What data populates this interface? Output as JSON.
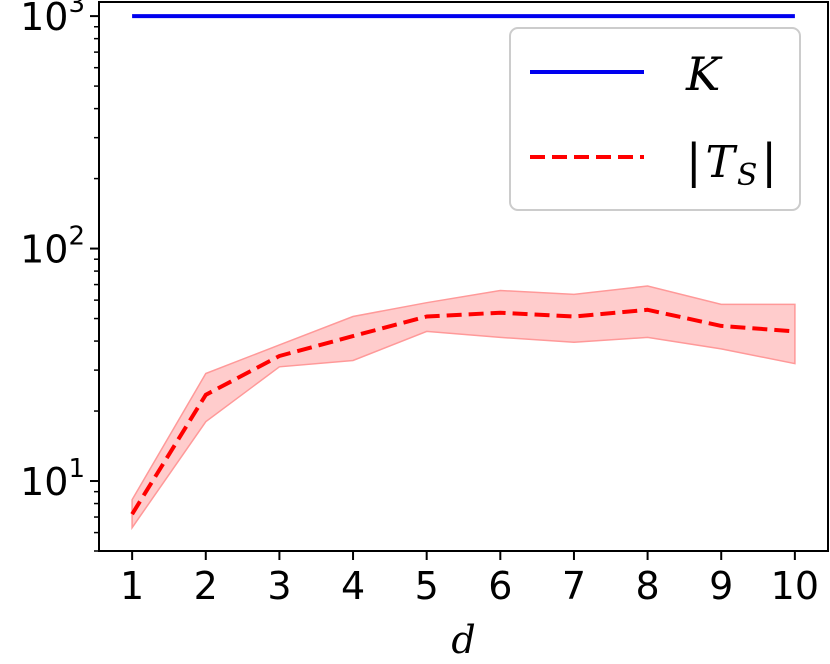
{
  "chart_data": {
    "type": "line",
    "title": "",
    "xlabel": "d",
    "ylabel": "",
    "yscale": "log",
    "xlim": [
      0.55,
      10.45
    ],
    "ylim": [
      5.0,
      1150
    ],
    "x": [
      1,
      2,
      3,
      4,
      5,
      6,
      7,
      8,
      9,
      10
    ],
    "x_ticks": [
      "1",
      "2",
      "3",
      "4",
      "5",
      "6",
      "7",
      "8",
      "9",
      "10"
    ],
    "y_ticks": [
      {
        "value": 10,
        "base": "10",
        "exp": "1"
      },
      {
        "value": 100,
        "base": "10",
        "exp": "2"
      },
      {
        "value": 1000,
        "base": "10",
        "exp": "3"
      }
    ],
    "grid": false,
    "legend": {
      "placement": "top-right"
    },
    "series": [
      {
        "name": "K",
        "style": "solid",
        "color": "#0000ee",
        "values": [
          1000,
          1000,
          1000,
          1000,
          1000,
          1000,
          1000,
          1000,
          1000,
          1000
        ]
      },
      {
        "name": "|T_S|",
        "legend_main": "|",
        "legend_script": "T",
        "legend_sub": "S",
        "legend_close": "|",
        "style": "dashed",
        "color": "#ff0000",
        "band_color": "#ffcccc",
        "band_edge_color": "#ff9999",
        "values": [
          7.2,
          23.5,
          34.5,
          42,
          51,
          53,
          51,
          54.5,
          46.5,
          44
        ],
        "lower": [
          6.3,
          18,
          31,
          33,
          44,
          41.5,
          39.5,
          41.5,
          37,
          32
        ],
        "upper": [
          8.3,
          29,
          38.5,
          51,
          58.5,
          66,
          63.5,
          69,
          57.5,
          57.5
        ]
      }
    ]
  }
}
